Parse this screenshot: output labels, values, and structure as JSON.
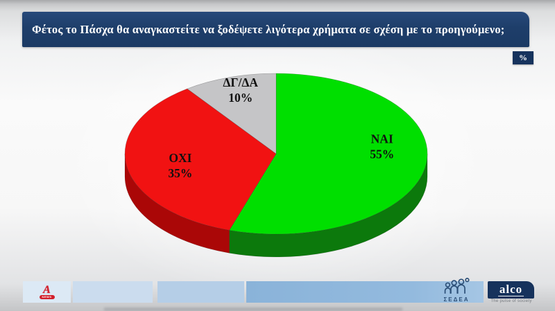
{
  "header": {
    "title": "Φέτος το Πάσχα θα αναγκαστείτε να ξοδέψετε λιγότερα χρήματα σε σχέση με το προηγούμενο;",
    "unit_badge": "%",
    "bar_color": "#1e3e6a"
  },
  "chart_data": {
    "type": "pie",
    "style": "3d",
    "title": "Φέτος το Πάσχα θα αναγκαστείτε να ξοδέψετε λιγότερα χρήματα σε σχέση με το προηγούμενο;",
    "labels": [
      "ΝΑΙ",
      "ΟΧΙ",
      "ΔΓ/ΔΑ"
    ],
    "values": [
      55,
      35,
      10
    ],
    "value_labels": [
      "55%",
      "35%",
      "10%"
    ],
    "colors": [
      "#00df00",
      "#f11212",
      "#c5c5c7"
    ],
    "side_colors": [
      "#0c790c",
      "#aa0707",
      "#9a9a9c"
    ],
    "start_angle_deg": -90,
    "direction": "clockwise",
    "legend": "none",
    "unit": "%"
  },
  "footer": {
    "alpha": {
      "letter": "A",
      "news_label": "NEWS",
      "color": "#d21f2b"
    },
    "sedea": {
      "label": "ΣΕΔΕΑ"
    },
    "alco": {
      "name": "alco",
      "tagline": "The pulse of society",
      "color": "#16325c"
    }
  }
}
